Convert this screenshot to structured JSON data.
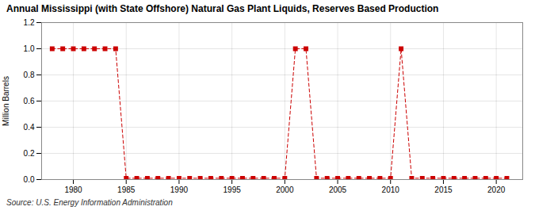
{
  "chart_data": {
    "type": "line",
    "title": "Annual Mississippi (with State Offshore) Natural Gas Plant Liquids, Reserves Based Production",
    "ylabel": "Million Barrels",
    "source": "Source: U.S. Energy Information Administration",
    "x": [
      1978,
      1979,
      1980,
      1981,
      1982,
      1983,
      1984,
      1985,
      1986,
      1987,
      1988,
      1989,
      1990,
      1991,
      1992,
      1993,
      1994,
      1995,
      1996,
      1997,
      1998,
      1999,
      2000,
      2001,
      2002,
      2003,
      2004,
      2005,
      2006,
      2007,
      2008,
      2009,
      2010,
      2011,
      2012,
      2013,
      2014,
      2015,
      2016,
      2017,
      2018,
      2019,
      2020,
      2021
    ],
    "values": [
      1.0,
      1.0,
      1.0,
      1.0,
      1.0,
      1.0,
      1.0,
      0.01,
      0.01,
      0.01,
      0.01,
      0.01,
      0.01,
      0.01,
      0.01,
      0.01,
      0.01,
      0.01,
      0.01,
      0.01,
      0.01,
      0.01,
      0.01,
      1.0,
      1.0,
      0.01,
      0.01,
      0.01,
      0.01,
      0.01,
      0.01,
      0.01,
      0.01,
      1.0,
      0.01,
      0.01,
      0.01,
      0.01,
      0.01,
      0.01,
      0.01,
      0.01,
      0.01,
      0.01
    ],
    "color": "#cc0000",
    "marker": "square",
    "line_style": "dashed",
    "xlim": [
      1977,
      2022.5
    ],
    "xticks": [
      1980,
      1985,
      1990,
      1995,
      2000,
      2005,
      2010,
      2015,
      2020
    ],
    "ylim": [
      0.0,
      1.2
    ],
    "yticks": [
      {
        "value": 0.0,
        "label": "0.0"
      },
      0.2,
      0.4,
      0.6,
      0.8,
      {
        "value": 1.0,
        "label": "1.0"
      },
      1.2
    ],
    "grid": true
  }
}
